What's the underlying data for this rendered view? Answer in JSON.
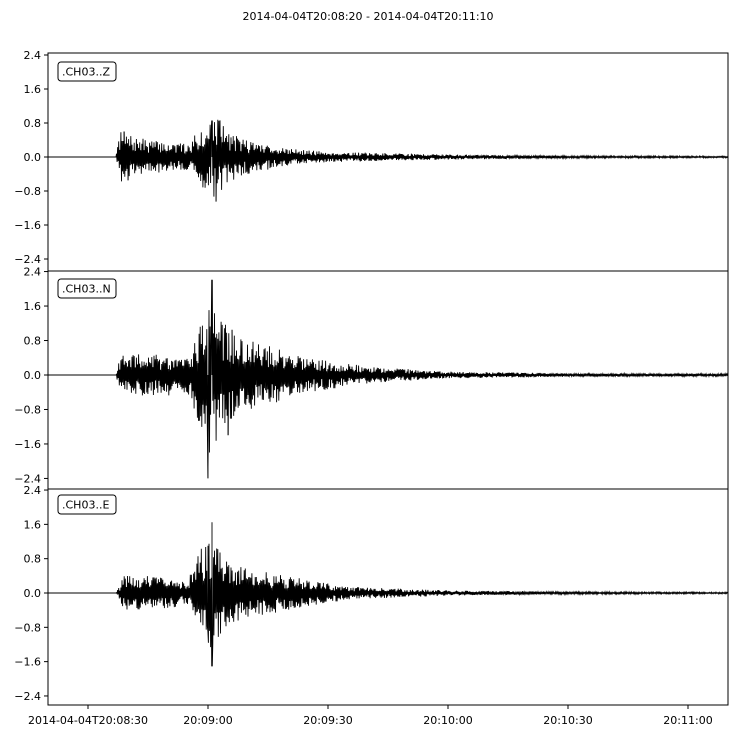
{
  "chart_data": {
    "type": "line",
    "title": "2014-04-04T20:08:20  -  2014-04-04T20:11:10",
    "x_range": [
      "2014-04-04T20:08:20",
      "2014-04-04T20:11:10"
    ],
    "x_ticks": [
      {
        "time": "2014-04-04T20:08:30",
        "label": "2014-04-04T20:08:30"
      },
      {
        "time": "2014-04-04T20:09:00",
        "label": "20:09:00"
      },
      {
        "time": "2014-04-04T20:09:30",
        "label": "20:09:30"
      },
      {
        "time": "2014-04-04T20:10:00",
        "label": "20:10:00"
      },
      {
        "time": "2014-04-04T20:10:30",
        "label": "20:10:30"
      },
      {
        "time": "2014-04-04T20:11:00",
        "label": "20:11:00"
      }
    ],
    "y_ticks": [
      "2.4",
      "1.6",
      "0.8",
      "0.0",
      "−0.8",
      "−1.6",
      "−2.4"
    ],
    "ylim": [
      -2.5,
      2.5
    ],
    "grid": false,
    "line_color": "#000000",
    "series": [
      {
        "name": ".CH03..Z",
        "onset": "2014-04-04T20:08:37",
        "envelope": [
          [
            "2014-04-04T20:08:20",
            0
          ],
          [
            "2014-04-04T20:08:37",
            0
          ],
          [
            "2014-04-04T20:08:38",
            0.6
          ],
          [
            "2014-04-04T20:08:42",
            0.45
          ],
          [
            "2014-04-04T20:08:50",
            0.35
          ],
          [
            "2014-04-04T20:08:55",
            0.3
          ],
          [
            "2014-04-04T20:08:59",
            0.8
          ],
          [
            "2014-04-04T20:09:02",
            1.0
          ],
          [
            "2014-04-04T20:09:05",
            0.6
          ],
          [
            "2014-04-04T20:09:10",
            0.4
          ],
          [
            "2014-04-04T20:09:20",
            0.2
          ],
          [
            "2014-04-04T20:09:30",
            0.12
          ],
          [
            "2014-04-04T20:10:00",
            0.06
          ],
          [
            "2014-04-04T20:10:30",
            0.03
          ],
          [
            "2014-04-04T20:11:10",
            0.02
          ]
        ],
        "peaks": [
          [
            "2014-04-04T20:09:01",
            0.85
          ],
          [
            "2014-04-04T20:09:02",
            -1.05
          ],
          [
            "2014-04-04T20:08:39",
            0.6
          ],
          [
            "2014-04-04T20:08:40",
            -0.55
          ]
        ]
      },
      {
        "name": ".CH03..N",
        "onset": "2014-04-04T20:08:37",
        "envelope": [
          [
            "2014-04-04T20:08:20",
            0
          ],
          [
            "2014-04-04T20:08:37",
            0
          ],
          [
            "2014-04-04T20:08:38",
            0.45
          ],
          [
            "2014-04-04T20:08:45",
            0.5
          ],
          [
            "2014-04-04T20:08:55",
            0.45
          ],
          [
            "2014-04-04T20:08:58",
            1.2
          ],
          [
            "2014-04-04T20:09:00",
            2.2
          ],
          [
            "2014-04-04T20:09:03",
            1.3
          ],
          [
            "2014-04-04T20:09:08",
            0.85
          ],
          [
            "2014-04-04T20:09:15",
            0.7
          ],
          [
            "2014-04-04T20:09:25",
            0.4
          ],
          [
            "2014-04-04T20:09:40",
            0.2
          ],
          [
            "2014-04-04T20:10:00",
            0.08
          ],
          [
            "2014-04-04T20:10:30",
            0.04
          ],
          [
            "2014-04-04T20:11:10",
            0.03
          ]
        ],
        "peaks": [
          [
            "2014-04-04T20:09:01",
            2.2
          ],
          [
            "2014-04-04T20:09:00",
            -2.4
          ],
          [
            "2014-04-04T20:09:05",
            -1.4
          ],
          [
            "2014-04-04T20:09:06",
            1.05
          ]
        ]
      },
      {
        "name": ".CH03..E",
        "onset": "2014-04-04T20:08:37",
        "envelope": [
          [
            "2014-04-04T20:08:20",
            0
          ],
          [
            "2014-04-04T20:08:37",
            0
          ],
          [
            "2014-04-04T20:08:39",
            0.4
          ],
          [
            "2014-04-04T20:08:45",
            0.4
          ],
          [
            "2014-04-04T20:08:55",
            0.3
          ],
          [
            "2014-04-04T20:08:58",
            1.0
          ],
          [
            "2014-04-04T20:09:01",
            1.3
          ],
          [
            "2014-04-04T20:09:04",
            0.8
          ],
          [
            "2014-04-04T20:09:10",
            0.6
          ],
          [
            "2014-04-04T20:09:20",
            0.4
          ],
          [
            "2014-04-04T20:09:35",
            0.15
          ],
          [
            "2014-04-04T20:10:00",
            0.06
          ],
          [
            "2014-04-04T20:10:30",
            0.03
          ],
          [
            "2014-04-04T20:11:10",
            0.02
          ]
        ],
        "peaks": [
          [
            "2014-04-04T20:09:01",
            1.65
          ],
          [
            "2014-04-04T20:09:01",
            -1.7
          ],
          [
            "2014-04-04T20:09:00",
            1.1
          ],
          [
            "2014-04-04T20:09:00",
            -0.9
          ]
        ]
      }
    ]
  }
}
